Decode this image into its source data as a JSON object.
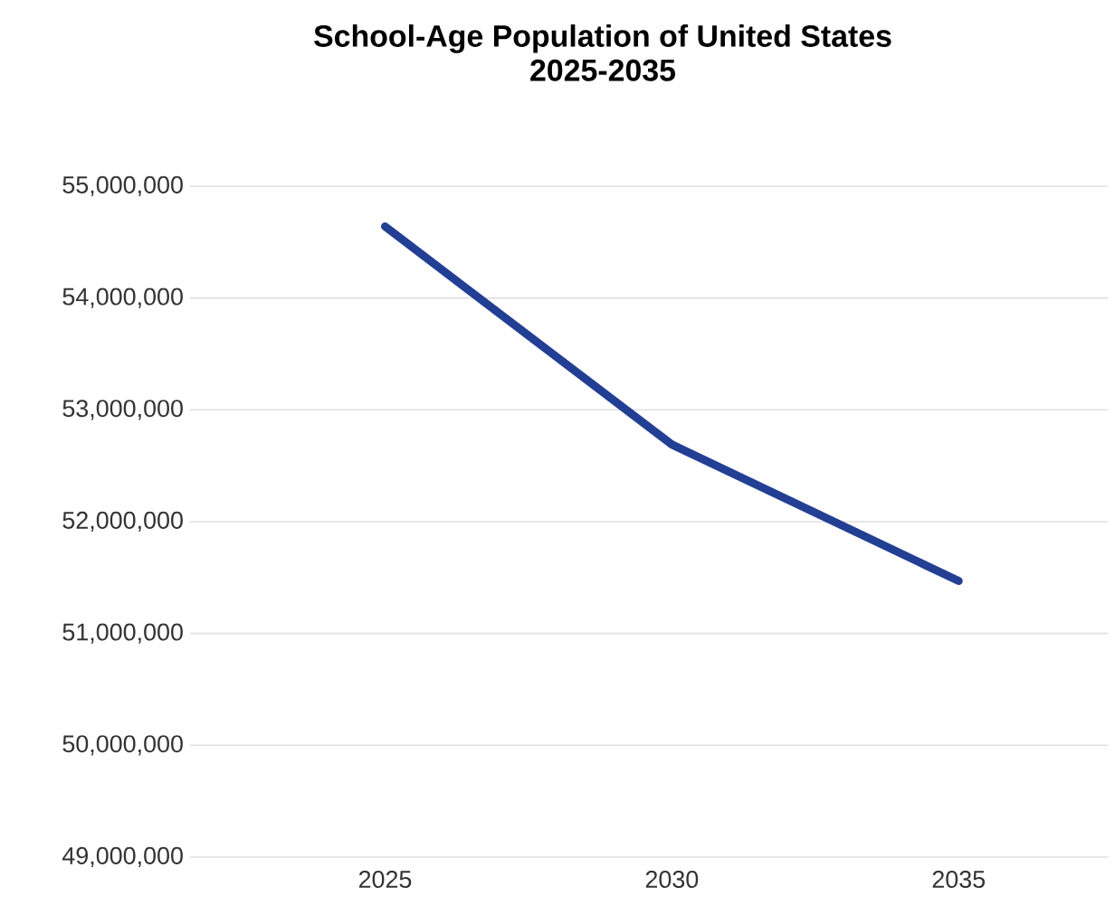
{
  "chart_data": {
    "type": "line",
    "title": "School-Age Population of United States",
    "subtitle": "2025-2035",
    "categories": [
      "2025",
      "2030",
      "2035"
    ],
    "series": [
      {
        "color": "#223f94",
        "values": [
          54640000,
          52690000,
          51470000
        ]
      }
    ],
    "ylim": [
      49000000,
      55000000
    ],
    "yticks": [
      {
        "value": 49000000,
        "label": "49,000,000"
      },
      {
        "value": 50000000,
        "label": "50,000,000"
      },
      {
        "value": 51000000,
        "label": "51,000,000"
      },
      {
        "value": 52000000,
        "label": "52,000,000"
      },
      {
        "value": 53000000,
        "label": "53,000,000"
      },
      {
        "value": 54000000,
        "label": "54,000,000"
      },
      {
        "value": 55000000,
        "label": "55,000,000"
      }
    ],
    "grid": "y",
    "marker": "none",
    "line_style": "solid"
  }
}
